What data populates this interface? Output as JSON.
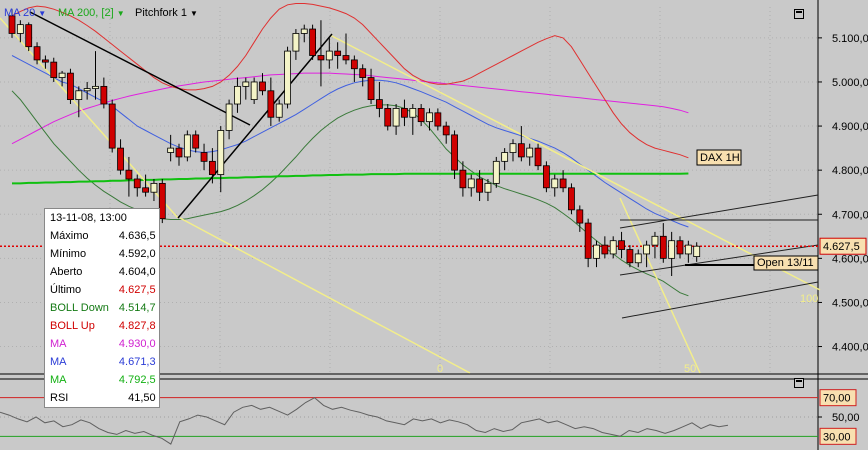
{
  "toolbar": {
    "ma20": "MA 20",
    "ma200": "MA 200, [2]",
    "pitchfork": "Pitchfork 1",
    "colors": {
      "ma20": "#2a3bd6",
      "ma200": "#1aa81a",
      "pitchfork": "#000000"
    }
  },
  "axis": {
    "main_ticks": [
      "5.100,0",
      "5.000,0",
      "4.900,0",
      "4.800,0",
      "4.700,0",
      "4.600,0",
      "4.500,0",
      "4.400,0"
    ],
    "rsi_ticks": [
      "70,00",
      "50,00",
      "30,00"
    ]
  },
  "tags": {
    "last_price": "4.627,5",
    "instrument": "DAX 1H",
    "open_label": "Open 13/11",
    "fib_0": "0",
    "fib_50": "50",
    "fib_100": "100"
  },
  "infobox": {
    "header": "13-11-08, 13:00",
    "rows": [
      {
        "label": "Máximo",
        "value": "4.636,5",
        "color": "#000000"
      },
      {
        "label": "Mínimo",
        "value": "4.592,0",
        "color": "#000000"
      },
      {
        "label": "Aberto",
        "value": "4.604,0",
        "color": "#000000"
      },
      {
        "label": "Último",
        "value": "4.627,5",
        "color": "#d00000"
      },
      {
        "label": "BOLL Down",
        "value": "4.514,7",
        "color": "#157a15"
      },
      {
        "label": "BOLL Up",
        "value": "4.827,8",
        "color": "#d00000"
      },
      {
        "label": "MA",
        "value": "4.930,0",
        "color": "#d020d0"
      },
      {
        "label": "MA",
        "value": "4.671,3",
        "color": "#2a3bd6"
      },
      {
        "label": "MA",
        "value": "4.792,5",
        "color": "#12b012"
      },
      {
        "label": "RSI",
        "value": "41,50",
        "color": "#000000"
      }
    ]
  },
  "chart_data": {
    "type": "candlestick",
    "instrument": "DAX 1H",
    "ylim": [
      4340,
      5170
    ],
    "rsi_ylim": [
      20,
      80
    ],
    "ohlc": [
      [
        5150,
        5165,
        5100,
        5110
      ],
      [
        5110,
        5140,
        5090,
        5130
      ],
      [
        5130,
        5135,
        5070,
        5080
      ],
      [
        5080,
        5090,
        5040,
        5050
      ],
      [
        5050,
        5060,
        5030,
        5045
      ],
      [
        5045,
        5055,
        5000,
        5010
      ],
      [
        5010,
        5025,
        4990,
        5020
      ],
      [
        5020,
        5030,
        4950,
        4960
      ],
      [
        4960,
        4990,
        4920,
        4980
      ],
      [
        4980,
        5000,
        4960,
        4985
      ],
      [
        4985,
        5070,
        4960,
        4990
      ],
      [
        4990,
        5010,
        4940,
        4950
      ],
      [
        4950,
        4960,
        4840,
        4850
      ],
      [
        4850,
        4870,
        4790,
        4800
      ],
      [
        4800,
        4830,
        4740,
        4780
      ],
      [
        4780,
        4790,
        4740,
        4760
      ],
      [
        4760,
        4790,
        4740,
        4750
      ],
      [
        4750,
        4780,
        4730,
        4770
      ],
      [
        4770,
        4780,
        4680,
        4690
      ],
      [
        4840,
        4880,
        4820,
        4850
      ],
      [
        4850,
        4860,
        4810,
        4830
      ],
      [
        4830,
        4890,
        4820,
        4880
      ],
      [
        4880,
        4890,
        4840,
        4850
      ],
      [
        4840,
        4860,
        4800,
        4820
      ],
      [
        4820,
        4850,
        4770,
        4790
      ],
      [
        4790,
        4900,
        4750,
        4890
      ],
      [
        4890,
        4960,
        4870,
        4950
      ],
      [
        4950,
        5010,
        4930,
        4990
      ],
      [
        4990,
        5010,
        4960,
        5000
      ],
      [
        4960,
        5010,
        4950,
        5000
      ],
      [
        5000,
        5020,
        4970,
        4980
      ],
      [
        4980,
        5010,
        4900,
        4920
      ],
      [
        4920,
        4960,
        4910,
        4950
      ],
      [
        4950,
        5080,
        4940,
        5070
      ],
      [
        5070,
        5120,
        5050,
        5110
      ],
      [
        5110,
        5130,
        5090,
        5120
      ],
      [
        5120,
        5130,
        5050,
        5060
      ],
      [
        5060,
        5140,
        4990,
        5050
      ],
      [
        5050,
        5100,
        5030,
        5070
      ],
      [
        5070,
        5090,
        5030,
        5060
      ],
      [
        5060,
        5110,
        5040,
        5050
      ],
      [
        5050,
        5060,
        5000,
        5030
      ],
      [
        5030,
        5040,
        4990,
        5010
      ],
      [
        5010,
        5030,
        4950,
        4960
      ],
      [
        4960,
        5000,
        4920,
        4940
      ],
      [
        4940,
        4950,
        4890,
        4900
      ],
      [
        4900,
        4950,
        4880,
        4940
      ],
      [
        4940,
        4960,
        4900,
        4920
      ],
      [
        4920,
        4950,
        4880,
        4940
      ],
      [
        4940,
        4950,
        4900,
        4910
      ],
      [
        4910,
        4940,
        4890,
        4930
      ],
      [
        4930,
        4940,
        4890,
        4900
      ],
      [
        4900,
        4910,
        4860,
        4880
      ],
      [
        4880,
        4890,
        4780,
        4800
      ],
      [
        4800,
        4820,
        4740,
        4760
      ],
      [
        4760,
        4790,
        4740,
        4780
      ],
      [
        4780,
        4800,
        4730,
        4750
      ],
      [
        4750,
        4780,
        4730,
        4770
      ],
      [
        4770,
        4830,
        4760,
        4820
      ],
      [
        4820,
        4850,
        4800,
        4840
      ],
      [
        4840,
        4870,
        4820,
        4860
      ],
      [
        4860,
        4900,
        4820,
        4830
      ],
      [
        4830,
        4860,
        4810,
        4850
      ],
      [
        4850,
        4860,
        4800,
        4810
      ],
      [
        4810,
        4820,
        4750,
        4760
      ],
      [
        4760,
        4790,
        4740,
        4780
      ],
      [
        4780,
        4800,
        4750,
        4760
      ],
      [
        4760,
        4770,
        4700,
        4710
      ],
      [
        4710,
        4720,
        4660,
        4680
      ],
      [
        4680,
        4690,
        4580,
        4600
      ],
      [
        4600,
        4640,
        4580,
        4630
      ],
      [
        4630,
        4650,
        4600,
        4610
      ],
      [
        4610,
        4650,
        4600,
        4640
      ],
      [
        4640,
        4660,
        4600,
        4620
      ],
      [
        4620,
        4630,
        4580,
        4590
      ],
      [
        4590,
        4620,
        4580,
        4610
      ],
      [
        4610,
        4640,
        4580,
        4630
      ],
      [
        4630,
        4660,
        4600,
        4650
      ],
      [
        4650,
        4680,
        4590,
        4600
      ],
      [
        4600,
        4660,
        4560,
        4640
      ],
      [
        4640,
        4650,
        4600,
        4610
      ],
      [
        4610,
        4640,
        4590,
        4630
      ],
      [
        4604,
        4636.5,
        4592,
        4627.5
      ]
    ],
    "ma20_values": [
      5060,
      5050,
      5040,
      5030,
      5020,
      5010,
      5000,
      4995,
      4985,
      4975,
      4965,
      4955,
      4945,
      4930,
      4915,
      4900,
      4890,
      4880,
      4870,
      4860,
      4852,
      4846,
      4842,
      4840,
      4842,
      4846,
      4852,
      4858,
      4866,
      4876,
      4886,
      4896,
      4906,
      4916,
      4926,
      4938,
      4950,
      4962,
      4974,
      4984,
      4992,
      4998,
      5002,
      5004,
      5004,
      5002,
      4998,
      4992,
      4985,
      4978,
      4970,
      4962,
      4954,
      4944,
      4934,
      4924,
      4914,
      4904,
      4896,
      4890,
      4884,
      4878,
      4872,
      4866,
      4858,
      4850,
      4840,
      4828,
      4814,
      4800,
      4786,
      4772,
      4760,
      4748,
      4736,
      4724,
      4712,
      4702,
      4694,
      4686,
      4678,
      4671
    ],
    "bollup_values": [
      5150,
      5160,
      5168,
      5172,
      5170,
      5165,
      5158,
      5150,
      5140,
      5128,
      5115,
      5100,
      5085,
      5070,
      5055,
      5040,
      5025,
      5010,
      4998,
      4990,
      4985,
      4982,
      4982,
      4985,
      4990,
      5000,
      5015,
      5035,
      5060,
      5090,
      5120,
      5145,
      5165,
      5175,
      5178,
      5178,
      5176,
      5172,
      5168,
      5162,
      5155,
      5145,
      5130,
      5110,
      5090,
      5070,
      5050,
      5030,
      5015,
      5005,
      4998,
      4995,
      4995,
      4998,
      5002,
      5010,
      5020,
      5030,
      5040,
      5050,
      5060,
      5070,
      5080,
      5090,
      5098,
      5105,
      5100,
      5080,
      5050,
      5020,
      4990,
      4960,
      4930,
      4905,
      4885,
      4870,
      4858,
      4850,
      4845,
      4840,
      4835,
      4828
    ],
    "bolldown_values": [
      4980,
      4960,
      4935,
      4910,
      4885,
      4860,
      4840,
      4820,
      4800,
      4782,
      4766,
      4752,
      4740,
      4728,
      4718,
      4710,
      4702,
      4695,
      4690,
      4688,
      4688,
      4690,
      4694,
      4698,
      4702,
      4706,
      4712,
      4720,
      4730,
      4742,
      4756,
      4772,
      4790,
      4810,
      4830,
      4852,
      4872,
      4890,
      4905,
      4918,
      4928,
      4936,
      4942,
      4946,
      4948,
      4948,
      4946,
      4940,
      4930,
      4915,
      4895,
      4872,
      4848,
      4830,
      4812,
      4798,
      4785,
      4775,
      4765,
      4758,
      4752,
      4746,
      4740,
      4733,
      4725,
      4715,
      4702,
      4688,
      4672,
      4656,
      4640,
      4625,
      4610,
      4596,
      4584,
      4574,
      4565,
      4557,
      4548,
      4535,
      4522,
      4515
    ],
    "ma_magenta_values": [
      4860,
      4870,
      4880,
      4890,
      4900,
      4910,
      4918,
      4926,
      4934,
      4940,
      4946,
      4952,
      4958,
      4963,
      4968,
      4972,
      4976,
      4980,
      4984,
      4988,
      4991,
      4994,
      4997,
      5000,
      5002,
      5004,
      5006,
      5008,
      5010,
      5012,
      5014,
      5016,
      5017,
      5018,
      5019,
      5020,
      5020,
      5020,
      5020,
      5019,
      5018,
      5017,
      5016,
      5014,
      5012,
      5010,
      5008,
      5006,
      5004,
      5002,
      5000,
      4998,
      4996,
      4994,
      4992,
      4990,
      4988,
      4986,
      4984,
      4982,
      4980,
      4978,
      4976,
      4974,
      4972,
      4970,
      4968,
      4966,
      4964,
      4962,
      4960,
      4958,
      4956,
      4954,
      4952,
      4950,
      4948,
      4946,
      4944,
      4940,
      4936,
      4930
    ],
    "ma_green_values": [
      4770,
      4770,
      4771,
      4771,
      4772,
      4772,
      4773,
      4773,
      4774,
      4774,
      4775,
      4775,
      4776,
      4776,
      4777,
      4777,
      4778,
      4778,
      4779,
      4779,
      4780,
      4780,
      4781,
      4781,
      4782,
      4782,
      4783,
      4783,
      4784,
      4784,
      4785,
      4785,
      4786,
      4786,
      4787,
      4787,
      4788,
      4788,
      4789,
      4789,
      4790,
      4790,
      4790,
      4791,
      4791,
      4791,
      4791,
      4792,
      4792,
      4792,
      4792,
      4792,
      4792,
      4792,
      4792,
      4792,
      4792,
      4792,
      4792,
      4792,
      4792,
      4792,
      4792,
      4792,
      4792,
      4792,
      4792,
      4792,
      4792,
      4792,
      4792,
      4792,
      4792,
      4792,
      4792,
      4792,
      4792,
      4792,
      4792,
      4792,
      4792,
      4792.5
    ],
    "rsi_values": [
      55,
      52,
      48,
      45,
      50,
      44,
      46,
      40,
      42,
      47,
      44,
      38,
      34,
      32,
      36,
      33,
      35,
      31,
      28,
      22,
      45,
      48,
      52,
      50,
      46,
      42,
      55,
      60,
      62,
      58,
      60,
      56,
      52,
      58,
      65,
      70,
      62,
      58,
      60,
      57,
      55,
      52,
      50,
      46,
      44,
      42,
      48,
      46,
      48,
      44,
      47,
      45,
      42,
      36,
      34,
      38,
      35,
      37,
      44,
      46,
      48,
      44,
      46,
      42,
      38,
      40,
      38,
      34,
      32,
      30,
      36,
      34,
      38,
      36,
      33,
      36,
      40,
      44,
      38,
      42,
      40,
      41.5
    ],
    "ylabel": "",
    "xlabel": ""
  }
}
